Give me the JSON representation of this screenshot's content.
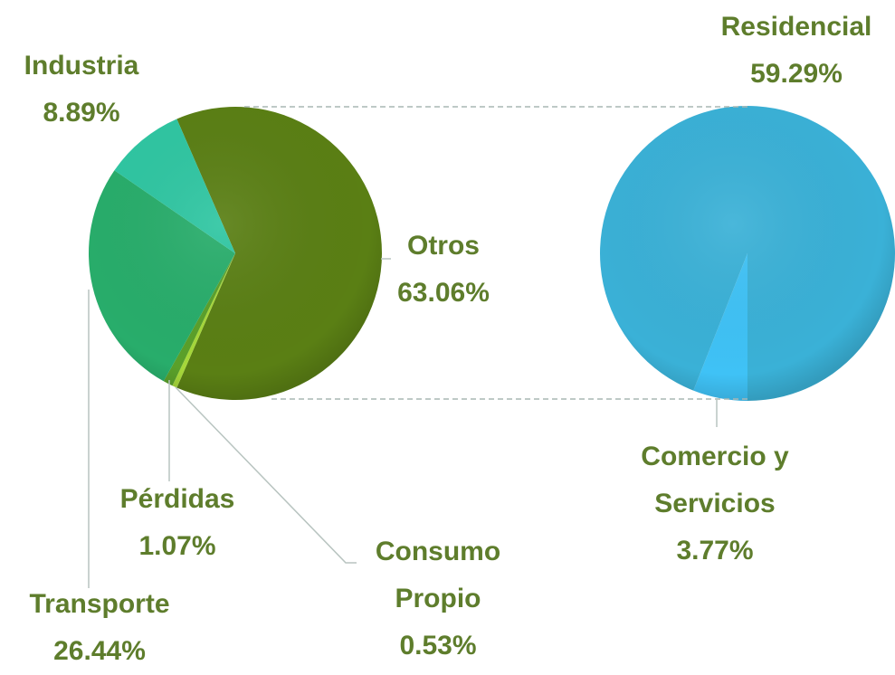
{
  "chart_data": {
    "type": "pie",
    "categories": [
      "Otros",
      "Consumo Propio",
      "Pérdidas",
      "Transporte",
      "Industria"
    ],
    "values": [
      63.06,
      0.53,
      1.07,
      26.44,
      8.89
    ],
    "value_labels": [
      "63.06%",
      "0.53%",
      "1.07%",
      "26.44%",
      "8.89%"
    ],
    "colors": [
      "#5a7f14",
      "#a6d83a",
      "#5aa02a",
      "#28ad6b",
      "#2fc6a2"
    ],
    "secondary": {
      "categories": [
        "Comercio y Servicios",
        "Residencial"
      ],
      "values": [
        3.77,
        59.29
      ],
      "value_labels": [
        "3.77%",
        "59.29%"
      ],
      "colors": [
        "#3fc2f6",
        "#3ab1d7"
      ]
    }
  }
}
